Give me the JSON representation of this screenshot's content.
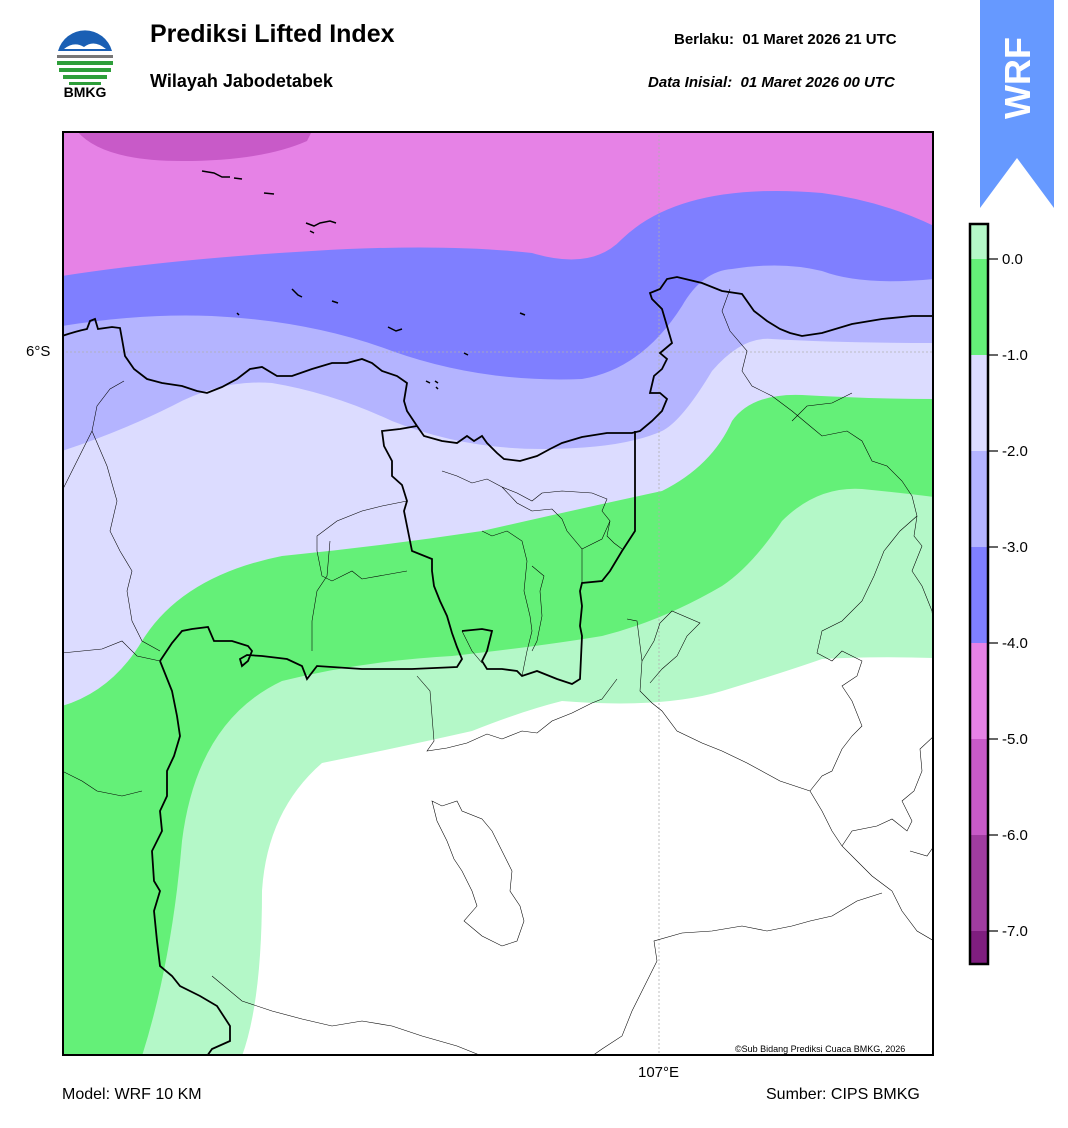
{
  "header": {
    "logo_text": "BMKG",
    "title": "Prediksi Lifted Index",
    "subtitle": "Wilayah Jabodetabek",
    "valid_label": "Berlaku:",
    "valid_time": "01 Maret 2026 21 UTC",
    "init_label": "Data Inisial:",
    "init_time": "01 Maret 2026 00 UTC"
  },
  "badge": {
    "text": "WRF",
    "color": "#6699ff"
  },
  "map": {
    "lat_label": "6°S",
    "lon_label": "107°E",
    "credit": "©Sub Bidang Prediksi Cuaca BMKG, 2026"
  },
  "colorbar": {
    "ticks": [
      "0.0",
      "-1.0",
      "-2.0",
      "-3.0",
      "-4.0",
      "-5.0",
      "-6.0",
      "-7.0"
    ],
    "colors": [
      "#b4f8c8",
      "#64f078",
      "#dcdcff",
      "#b4b4ff",
      "#7f7fff",
      "#e682e6",
      "#c85ac8",
      "#a03ca0",
      "#7f1e7f"
    ]
  },
  "footer": {
    "model": "Model: WRF 10 KM",
    "source": "Sumber: CIPS BMKG"
  }
}
